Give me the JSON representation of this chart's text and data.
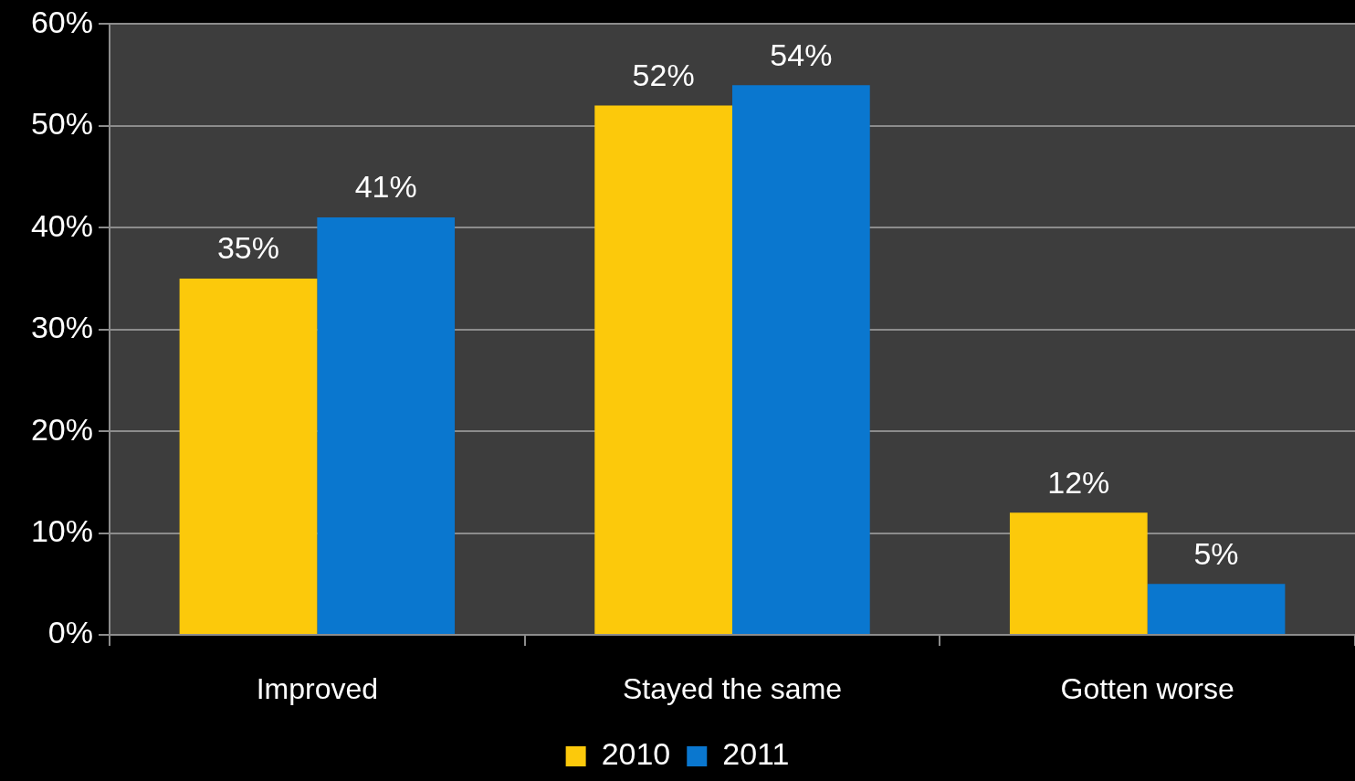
{
  "chart_data": {
    "type": "bar",
    "categories": [
      "Improved",
      "Stayed the same",
      "Gotten worse"
    ],
    "series": [
      {
        "name": "2010",
        "color": "#fcc90b",
        "values": [
          35,
          52,
          12
        ],
        "value_labels": [
          "35%",
          "52%",
          "12%"
        ]
      },
      {
        "name": "2011",
        "color": "#0a77cf",
        "values": [
          41,
          54,
          5
        ],
        "value_labels": [
          "41%",
          "54%",
          "5%"
        ]
      }
    ],
    "ylim": [
      0,
      60
    ],
    "yticks": [
      {
        "value": 0,
        "label": "0%"
      },
      {
        "value": 10,
        "label": "10%"
      },
      {
        "value": 20,
        "label": "20%"
      },
      {
        "value": 30,
        "label": "30%"
      },
      {
        "value": 40,
        "label": "40%"
      },
      {
        "value": 50,
        "label": "50%"
      },
      {
        "value": 60,
        "label": "60%"
      }
    ],
    "grid": "y",
    "legend": "bottom"
  }
}
